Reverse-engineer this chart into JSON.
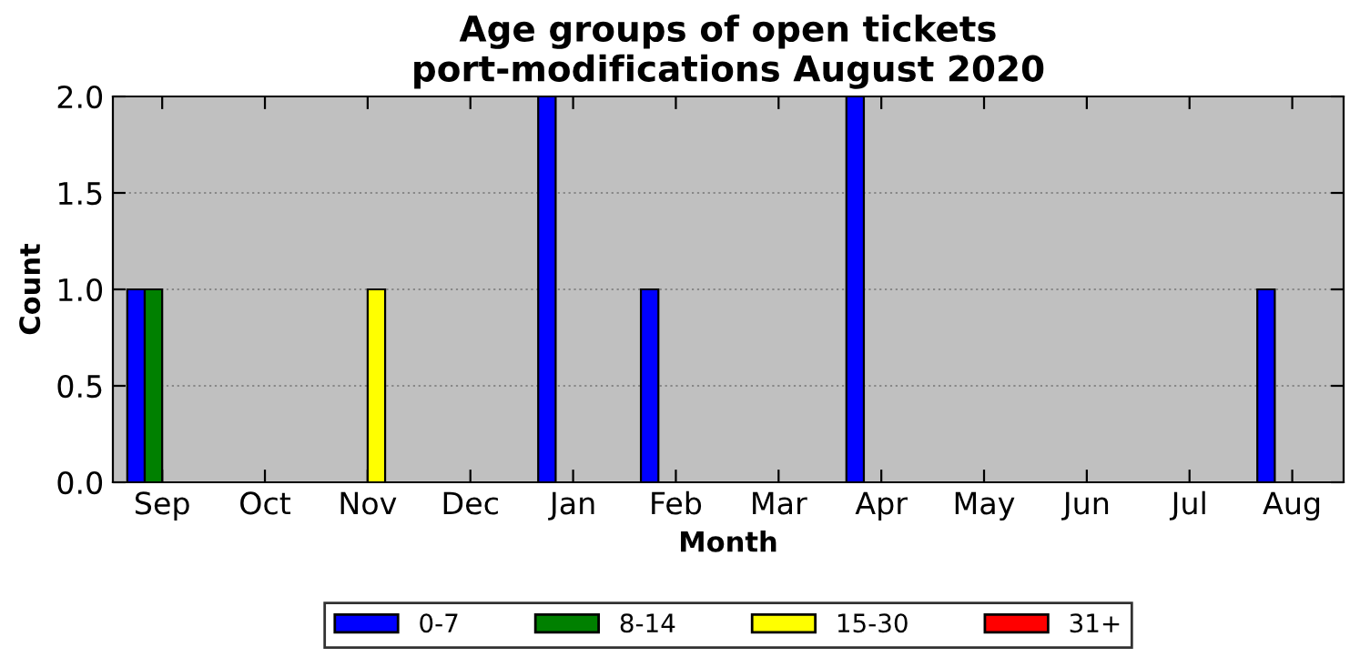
{
  "chart_data": {
    "type": "bar",
    "title": "Age groups of open tickets\nport-modifications August 2020",
    "xlabel": "Month",
    "ylabel": "Count",
    "categories": [
      "Sep",
      "Oct",
      "Nov",
      "Dec",
      "Jan",
      "Feb",
      "Mar",
      "Apr",
      "May",
      "Jun",
      "Jul",
      "Aug"
    ],
    "series": [
      {
        "name": "0-7",
        "color": "#0000ff",
        "values": [
          1,
          0,
          0,
          0,
          2,
          1,
          0,
          2,
          0,
          0,
          0,
          1
        ]
      },
      {
        "name": "8-14",
        "color": "#008000",
        "values": [
          1,
          0,
          0,
          0,
          0,
          0,
          0,
          0,
          0,
          0,
          0,
          0
        ]
      },
      {
        "name": "15-30",
        "color": "#ffff00",
        "values": [
          0,
          0,
          1,
          0,
          0,
          0,
          0,
          0,
          0,
          0,
          0,
          0
        ]
      },
      {
        "name": "31+",
        "color": "#ff0000",
        "values": [
          0,
          0,
          0,
          0,
          0,
          0,
          0,
          0,
          0,
          0,
          0,
          0
        ]
      }
    ],
    "ylim": [
      0,
      2
    ],
    "yticks": [
      {
        "value": 0,
        "label": "0.0"
      },
      {
        "value": 0.5,
        "label": "0.5"
      },
      {
        "value": 1,
        "label": "1.0"
      },
      {
        "value": 1.5,
        "label": "1.5"
      },
      {
        "value": 2,
        "label": "2.0"
      }
    ],
    "grid": "y",
    "legend": "bottom"
  }
}
